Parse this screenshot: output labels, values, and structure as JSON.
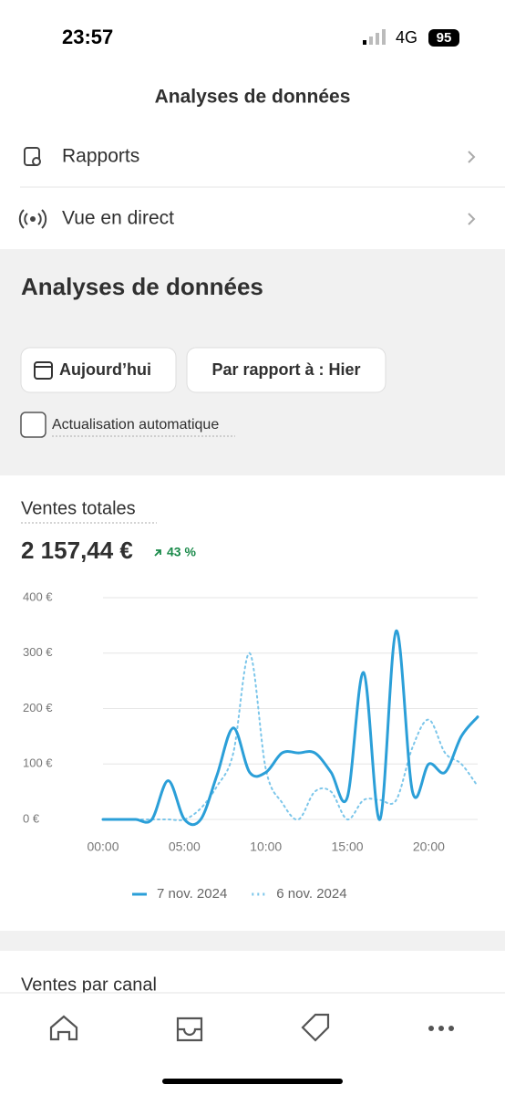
{
  "status_bar": {
    "time": "23:57",
    "network": "4G",
    "battery": "95"
  },
  "header": {
    "title": "Analyses de données"
  },
  "menu": [
    {
      "label": "Rapports"
    },
    {
      "label": "Vue en direct"
    }
  ],
  "filters": {
    "title": "Analyses de données",
    "date_button": "Aujourd’hui",
    "compare_button": "Par rapport à : Hier",
    "auto_refresh": "Actualisation automatique"
  },
  "sales_card": {
    "total": "2 157,44 €",
    "change": "43 %"
  },
  "chart_data": {
    "type": "line",
    "title": "Ventes totales",
    "x": [
      0,
      1,
      2,
      3,
      4,
      5,
      6,
      7,
      8,
      9,
      10,
      11,
      12,
      13,
      14,
      15,
      16,
      17,
      18,
      19,
      20,
      21,
      22,
      23
    ],
    "series": [
      {
        "name": "7 nov. 2024",
        "color": "#2b9fd8",
        "style": "solid",
        "values": [
          0,
          0,
          0,
          0,
          70,
          0,
          0,
          80,
          165,
          85,
          85,
          120,
          120,
          120,
          85,
          40,
          265,
          0,
          340,
          50,
          100,
          85,
          150,
          185
        ]
      },
      {
        "name": "6 nov. 2024",
        "color": "#7cc6ea",
        "style": "dotted",
        "values": [
          0,
          0,
          0,
          0,
          0,
          0,
          20,
          60,
          120,
          300,
          90,
          30,
          0,
          50,
          50,
          0,
          35,
          35,
          35,
          130,
          180,
          120,
          100,
          60
        ]
      }
    ],
    "xlim": [
      0,
      23
    ],
    "ylim": [
      0,
      400
    ],
    "xticks": [
      {
        "value": 0,
        "label": "00:00"
      },
      {
        "value": 5,
        "label": "05:00"
      },
      {
        "value": 10,
        "label": "10:00"
      },
      {
        "value": 15,
        "label": "15:00"
      },
      {
        "value": 20,
        "label": "20:00"
      }
    ],
    "yticks": [
      {
        "value": 0,
        "label": "0 €"
      },
      {
        "value": 100,
        "label": "100 €"
      },
      {
        "value": 200,
        "label": "200 €"
      },
      {
        "value": 300,
        "label": "300 €"
      },
      {
        "value": 400,
        "label": "400 €"
      }
    ],
    "grid": true
  },
  "next_section": {
    "title": "Ventes par canal"
  }
}
